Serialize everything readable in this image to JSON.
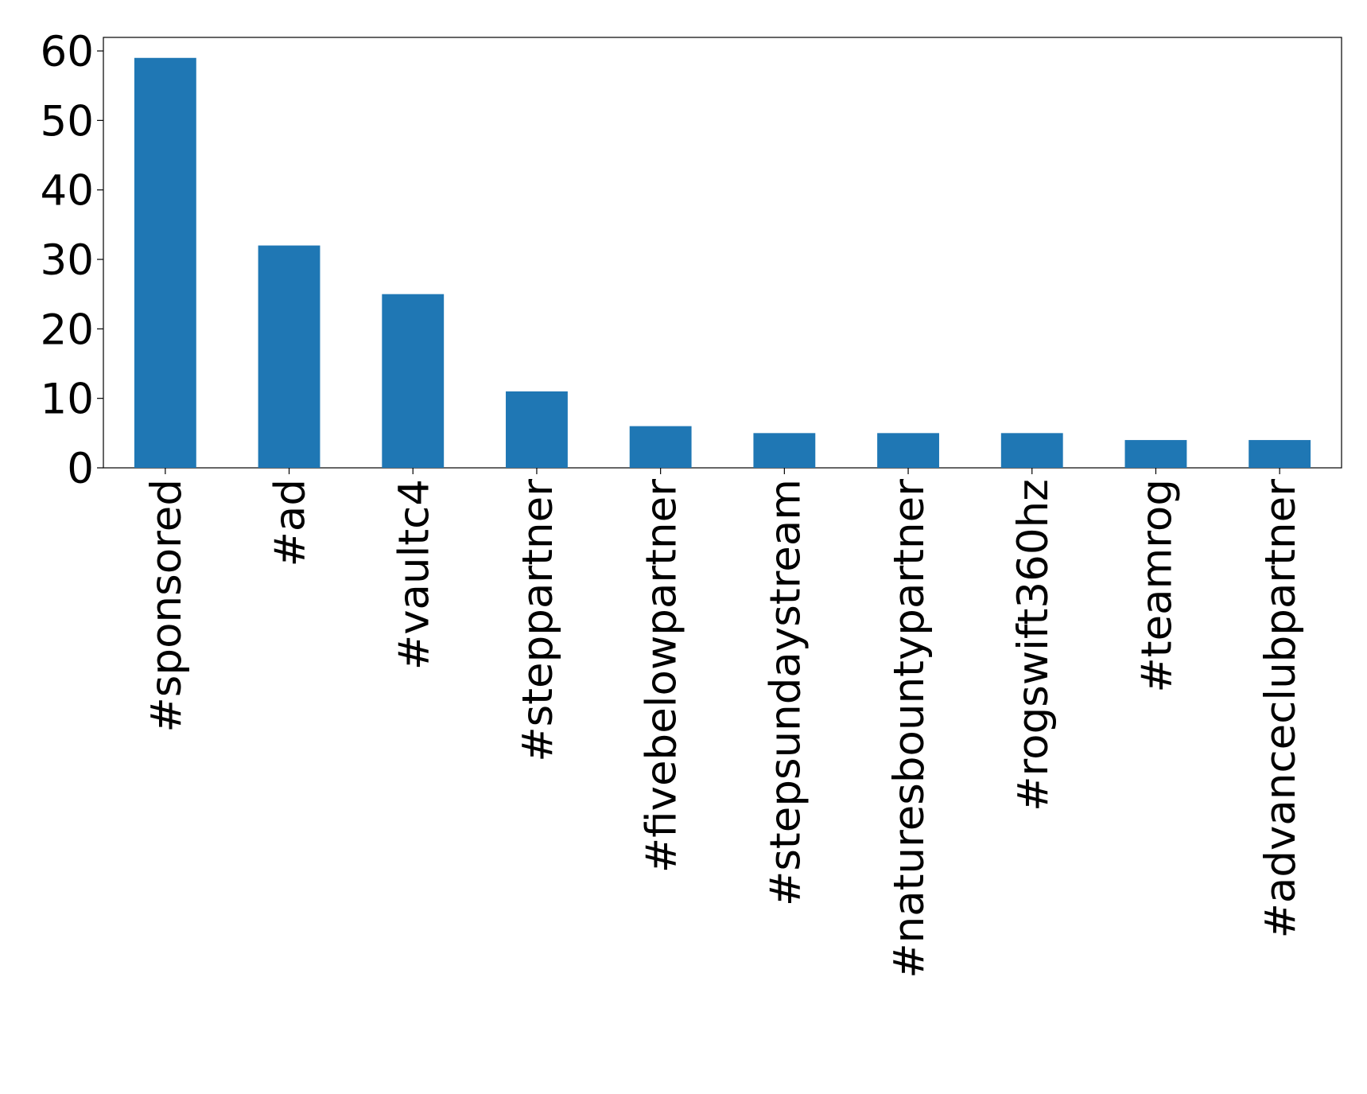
{
  "chart_data": {
    "type": "bar",
    "categories": [
      "#sponsored",
      "#ad",
      "#vaultc4",
      "#steppartner",
      "#fivebelowpartner",
      "#stepsundaystream",
      "#naturesbountypartner",
      "#rogswift360hz",
      "#teamrog",
      "#advanceclubpartner"
    ],
    "values": [
      59,
      32,
      25,
      11,
      6,
      5,
      5,
      5,
      4,
      4
    ],
    "color": "#1f77b4",
    "ylim": [
      0,
      61.95
    ],
    "yticks": [
      0,
      10,
      20,
      30,
      40,
      50,
      60
    ],
    "grid": false
  }
}
